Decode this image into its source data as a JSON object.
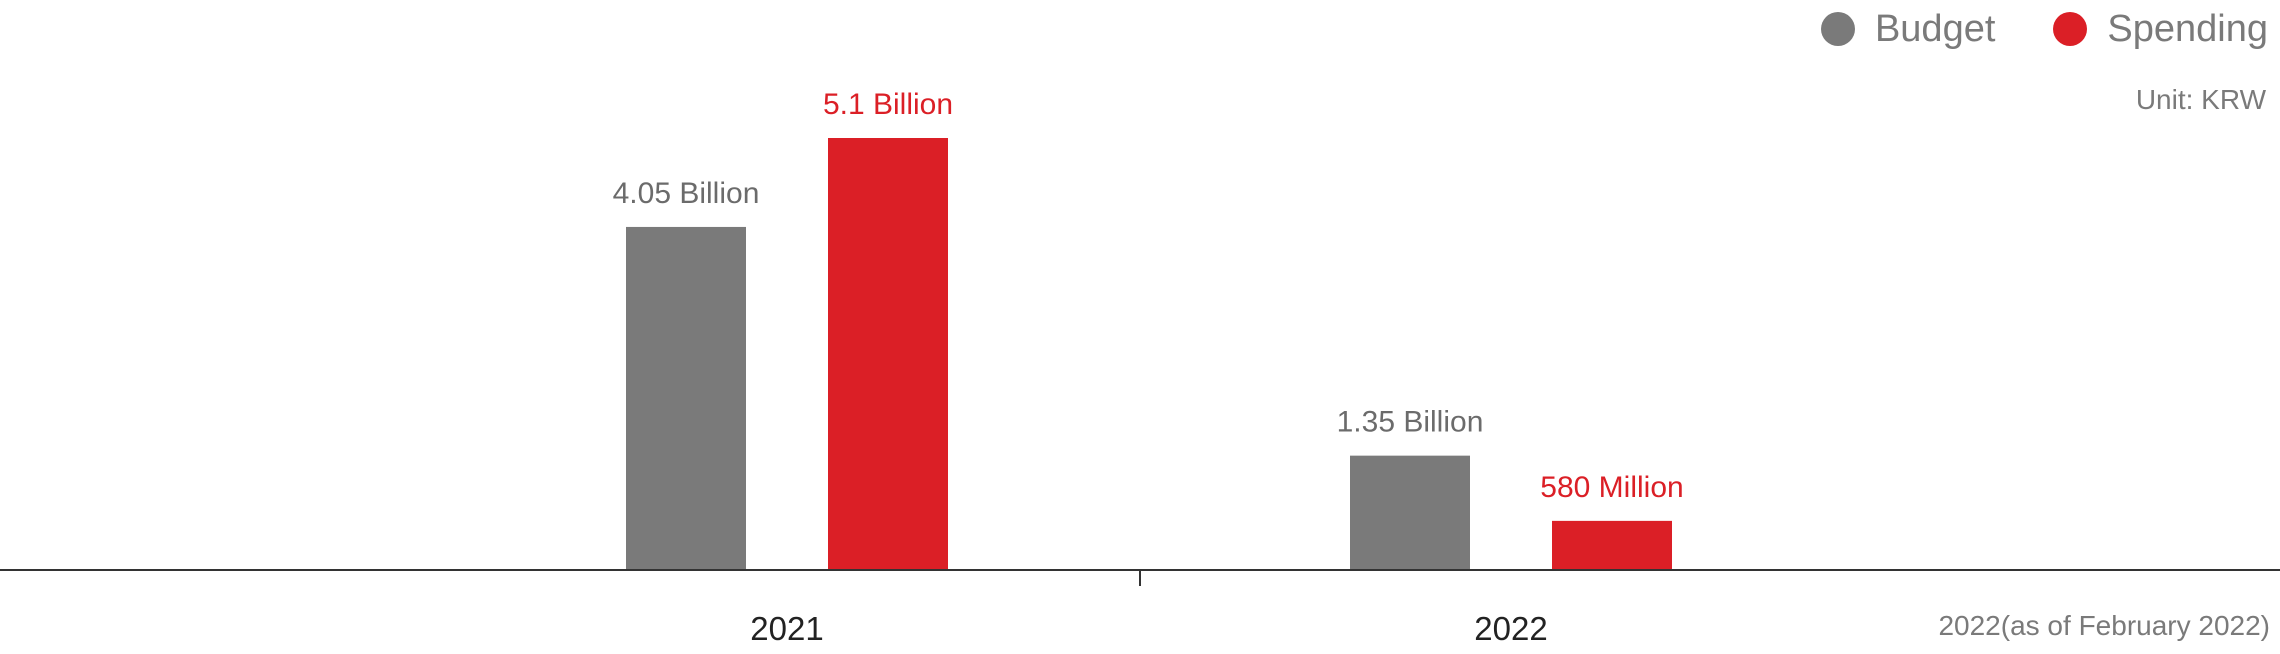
{
  "legend": [
    {
      "label": "Budget",
      "color": "#7a7a7a"
    },
    {
      "label": "Spending",
      "color": "#db1f26"
    }
  ],
  "unit_text": "Unit: KRW",
  "footnote": "2022(as of February 2022)",
  "chart_data": {
    "type": "bar",
    "categories": [
      "2021",
      "2022"
    ],
    "series": [
      {
        "name": "Budget",
        "color": "#7a7a7a",
        "values": [
          4050000000,
          1350000000
        ],
        "labels": [
          "4.05 Billion",
          "1.35 Billion"
        ]
      },
      {
        "name": "Spending",
        "color": "#db1f26",
        "values": [
          5100000000,
          580000000
        ],
        "labels": [
          "5.1 Billion",
          "580 Million"
        ]
      }
    ],
    "ylim": [
      0,
      5100000000
    ],
    "grid": false,
    "legend_position": "top-right",
    "xlabel": "",
    "ylabel": ""
  }
}
